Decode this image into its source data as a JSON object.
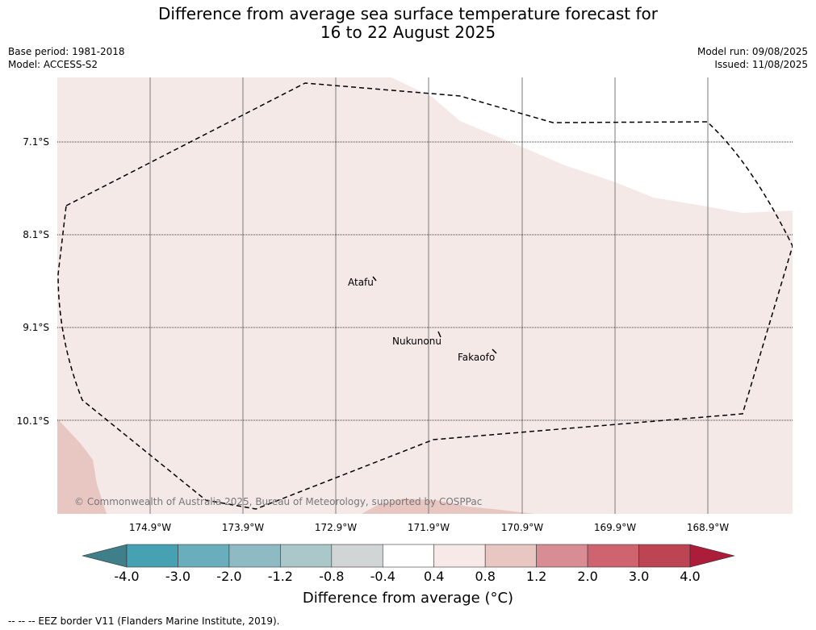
{
  "title_line1": "Difference from average sea surface temperature forecast for",
  "title_line2": "16 to 22 August 2025",
  "meta": {
    "base_period": "Base period: 1981-2018",
    "model": "Model: ACCESS-S2",
    "model_run": "Model run: 09/08/2025",
    "issued": "Issued: 11/08/2025"
  },
  "map": {
    "lat_labels": [
      "7.1°S",
      "8.1°S",
      "9.1°S",
      "10.1°S"
    ],
    "lon_labels": [
      "174.9°W",
      "173.9°W",
      "172.9°W",
      "171.9°W",
      "170.9°W",
      "169.9°W",
      "168.9°W"
    ],
    "places": [
      "Atafu",
      "Nukunonu",
      "Fakaofo"
    ],
    "copyright": "© Commonwealth of Australia 2025, Bureau of Meteorology, supported by COSPPac",
    "colors": {
      "ocean_light": "#f5e9e8",
      "ocean_medium": "#e8c7c3",
      "no_anomaly": "#ffffff",
      "grid": "#7a7a7a",
      "eez": "#000000"
    }
  },
  "colorbar": {
    "ticks": [
      "-4.0",
      "-3.0",
      "-2.0",
      "-1.2",
      "-0.8",
      "-0.4",
      "0.4",
      "0.8",
      "1.2",
      "2.0",
      "3.0",
      "4.0"
    ],
    "colors": [
      "#3f7f8a",
      "#46a1b3",
      "#6aaebd",
      "#8dbac3",
      "#aac7ca",
      "#d1d5d5",
      "#ffffff",
      "#f6e9e8",
      "#e8c7c3",
      "#d88c93",
      "#cf6470",
      "#bd4453",
      "#ab1d39"
    ],
    "label": "Difference from average (°C)"
  },
  "footnote": "--  --  -- EEZ border V11 (Flanders Marine Institute, 2019)."
}
